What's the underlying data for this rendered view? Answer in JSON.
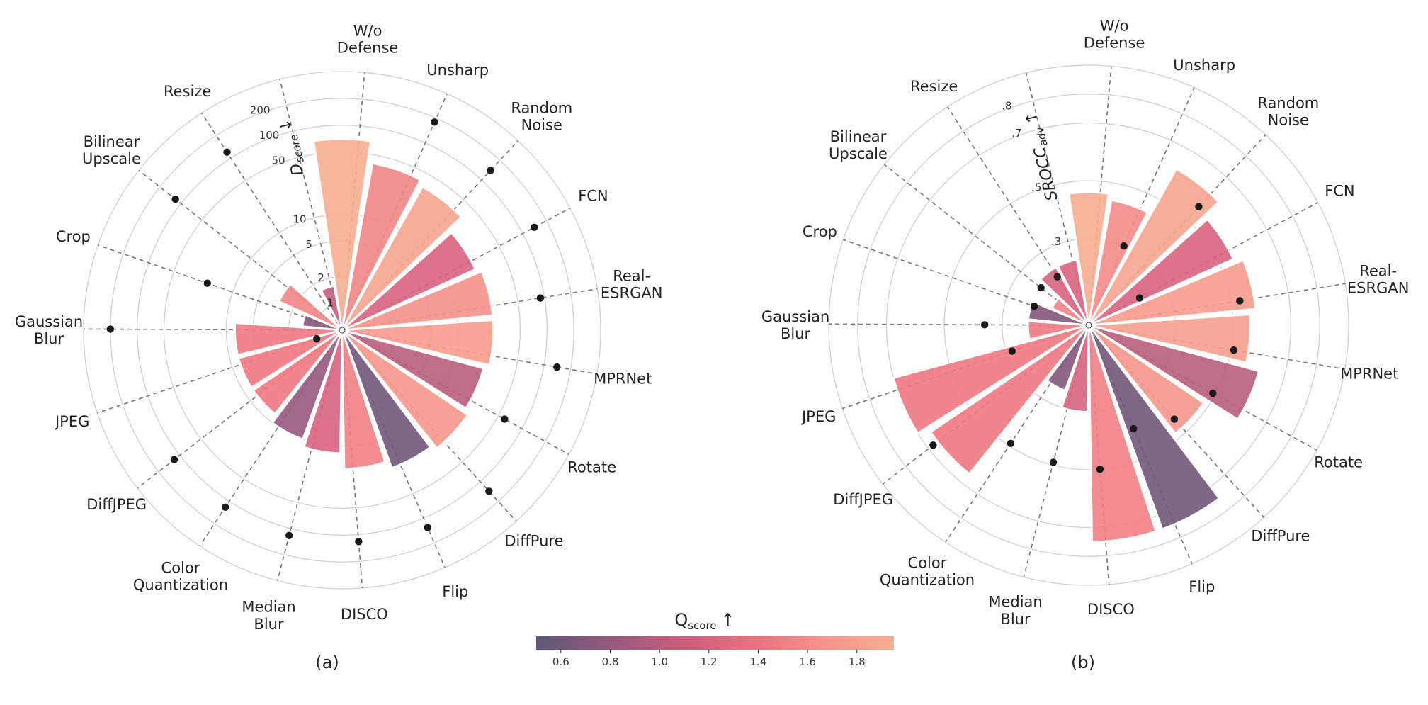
{
  "chart_data": [
    {
      "type": "polar-bar",
      "panel_label": "(a)",
      "radial_axis_label": "Dscore ↓",
      "radial_axis_label_main": "D",
      "radial_axis_label_sub": "score",
      "radial_axis_label_arrow": "↓",
      "radial_scale": "log",
      "rlim": [
        0.5,
        400
      ],
      "radial_ticks": [
        1,
        2,
        5,
        10,
        50,
        100,
        200
      ],
      "radial_tick_labels": [
        "1",
        "2",
        "5",
        "10",
        "50",
        "100",
        "200"
      ],
      "categories": [
        {
          "line1": "W/o",
          "line2": "Defense",
          "value": 70,
          "qscore": 1.95,
          "dot": null
        },
        {
          "line1": "Unsharp",
          "line2": "",
          "value": 40,
          "qscore": 1.55,
          "dot": 180
        },
        {
          "line1": "Random",
          "line2": "Noise",
          "value": 35,
          "qscore": 1.85,
          "dot": 140
        },
        {
          "line1": "FCN",
          "line2": "",
          "value": 22,
          "qscore": 1.2,
          "dot": 140
        },
        {
          "line1": "Real-",
          "line2": "ESRGAN",
          "value": 25,
          "qscore": 1.65,
          "dot": 90
        },
        {
          "line1": "MPRNet",
          "line2": "",
          "value": 25,
          "qscore": 1.75,
          "dot": 140
        },
        {
          "line1": "Rotate",
          "line2": "",
          "value": 22,
          "qscore": 1.0,
          "dot": 60
        },
        {
          "line1": "DiffPure",
          "line2": "",
          "value": 25,
          "qscore": 1.7,
          "dot": 140
        },
        {
          "line1": "Flip",
          "line2": "",
          "value": 22,
          "qscore": 0.6,
          "dot": 130
        },
        {
          "line1": "DISCO",
          "line2": "",
          "value": 18,
          "qscore": 1.5,
          "dot": 120
        },
        {
          "line1": "Median",
          "line2": "Blur",
          "value": 12,
          "qscore": 1.2,
          "dot": 120
        },
        {
          "line1": "Color",
          "line2": "Quantization",
          "value": 10,
          "qscore": 0.8,
          "dot": 120
        },
        {
          "line1": "DiffJPEG",
          "line2": "",
          "value": 8,
          "qscore": 1.45,
          "dot": 120
        },
        {
          "line1": "JPEG",
          "line2": "",
          "value": 8,
          "qscore": 1.45,
          "dot": 1
        },
        {
          "line1": "Gaussian",
          "line2": "Blur",
          "value": 8,
          "qscore": 1.45,
          "dot": 200
        },
        {
          "line1": "Crop",
          "line2": "",
          "value": 1.4,
          "qscore": 0.7,
          "dot": 20
        },
        {
          "line1": "Bilinear",
          "line2": "Upscale",
          "value": 3,
          "qscore": 1.55,
          "dot": 120
        },
        {
          "line1": "Resize",
          "line2": "",
          "value": 0.6,
          "qscore": 1.55,
          "dot": 120
        },
        {
          "line1": "",
          "line2": "",
          "value": 1.6,
          "qscore": 1.05,
          "dot": null
        }
      ]
    },
    {
      "type": "polar-bar",
      "panel_label": "(b)",
      "radial_axis_label": "SROCCadv ↑",
      "radial_axis_label_main": "SROCC",
      "radial_axis_label_sub": "adv",
      "radial_axis_label_arrow": "↑",
      "radial_scale": "linear",
      "rlim": [
        0.0,
        0.9
      ],
      "radial_ticks": [
        0.3,
        0.5,
        0.7,
        0.8
      ],
      "radial_tick_labels": [
        ".3",
        ".5",
        ".7",
        ".8"
      ],
      "categories": [
        {
          "line1": "W/o",
          "line2": "Defense",
          "value": 0.46,
          "qscore": 1.95,
          "dot": null
        },
        {
          "line1": "Unsharp",
          "line2": "",
          "value": 0.44,
          "qscore": 1.6,
          "dot": 0.3
        },
        {
          "line1": "Random",
          "line2": "Noise",
          "value": 0.62,
          "qscore": 1.85,
          "dot": 0.56
        },
        {
          "line1": "FCN",
          "line2": "",
          "value": 0.55,
          "qscore": 1.2,
          "dot": 0.2
        },
        {
          "line1": "Real-",
          "line2": "ESRGAN",
          "value": 0.58,
          "qscore": 1.75,
          "dot": 0.53
        },
        {
          "line1": "MPRNet",
          "line2": "",
          "value": 0.56,
          "qscore": 1.8,
          "dot": 0.51
        },
        {
          "line1": "Rotate",
          "line2": "",
          "value": 0.61,
          "qscore": 1.0,
          "dot": 0.49
        },
        {
          "line1": "DiffPure",
          "line2": "",
          "value": 0.48,
          "qscore": 1.7,
          "dot": 0.44
        },
        {
          "line1": "Flip",
          "line2": "",
          "value": 0.75,
          "qscore": 0.6,
          "dot": 0.39
        },
        {
          "line1": "DISCO",
          "line2": "",
          "value": 0.75,
          "qscore": 1.5,
          "dot": 0.5
        },
        {
          "line1": "Median",
          "line2": "Blur",
          "value": 0.3,
          "qscore": 1.2,
          "dot": 0.49
        },
        {
          "line1": "Color",
          "line2": "Quantization",
          "value": 0.24,
          "qscore": 0.7,
          "dot": 0.49
        },
        {
          "line1": "DiffJPEG",
          "line2": "",
          "value": 0.66,
          "qscore": 1.45,
          "dot": 0.68
        },
        {
          "line1": "JPEG",
          "line2": "",
          "value": 0.7,
          "qscore": 1.45,
          "dot": 0.28
        },
        {
          "line1": "Gaussian",
          "line2": "Blur",
          "value": 0.21,
          "qscore": 1.45,
          "dot": 0.36
        },
        {
          "line1": "Crop",
          "line2": "",
          "value": 0.21,
          "qscore": 0.7,
          "dot": 0.2
        },
        {
          "line1": "Bilinear",
          "line2": "Upscale",
          "value": 0.14,
          "qscore": 1.55,
          "dot": 0.21
        },
        {
          "line1": "Resize",
          "line2": "",
          "value": 0.23,
          "qscore": 1.2,
          "dot": 0.2
        },
        {
          "line1": "",
          "line2": "",
          "value": 0.23,
          "qscore": 1.2,
          "dot": null
        }
      ]
    }
  ],
  "colorbar": {
    "title": "Qscore ↑",
    "title_main": "Q",
    "title_sub": "score",
    "title_arrow": "↑",
    "range": [
      0.5,
      1.95
    ],
    "ticks": [
      0.6,
      0.8,
      1.0,
      1.2,
      1.4,
      1.6,
      1.8
    ],
    "tick_labels": [
      "0.6",
      "0.8",
      "1.0",
      "1.2",
      "1.4",
      "1.6",
      "1.8"
    ],
    "colors": [
      "#5d5778",
      "#94597c",
      "#c75e7d",
      "#ed6e7f",
      "#f4938a",
      "#f6ae91"
    ]
  }
}
